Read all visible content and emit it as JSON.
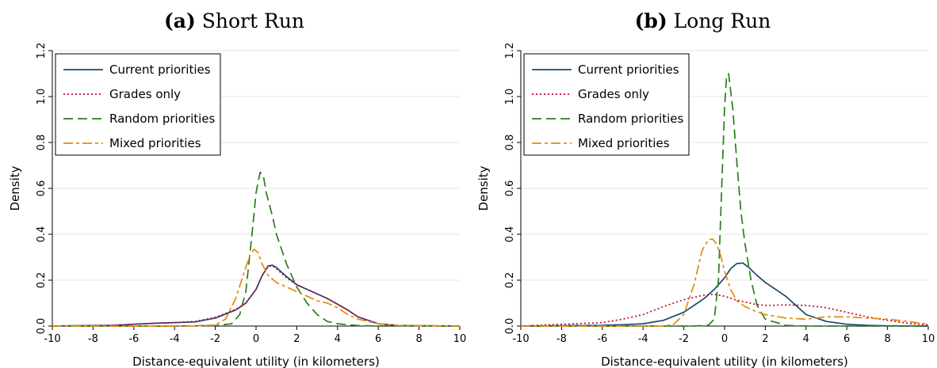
{
  "panels": [
    {
      "label": "(a)",
      "title": "Short Run"
    },
    {
      "label": "(b)",
      "title": "Long Run"
    }
  ],
  "chart_data": [
    {
      "type": "line",
      "title": "(a) Short Run",
      "xlabel": "Distance-equivalent utility (in kilometers)",
      "ylabel": "Density",
      "xlim": [
        -10,
        10
      ],
      "ylim": [
        0,
        1.2
      ],
      "xticks": [
        "-10",
        "-8",
        "-6",
        "-4",
        "-2",
        "0",
        "2",
        "4",
        "6",
        "8",
        "10"
      ],
      "yticks": [
        "0.0",
        "0.2",
        "0.4",
        "0.6",
        "0.8",
        "1.0",
        "1.2"
      ],
      "grid": "horizontal",
      "legend_position": "top-left",
      "series": [
        {
          "name": "Current priorities",
          "color": "#1a476f",
          "style": "solid",
          "x": [
            -10,
            -7,
            -6,
            -5,
            -4,
            -3,
            -2,
            -1,
            -0.5,
            0,
            0.3,
            0.6,
            0.8,
            1,
            1.5,
            2,
            2.5,
            3,
            3.5,
            4,
            4.5,
            5,
            6,
            7,
            10
          ],
          "y": [
            0,
            0.003,
            0.008,
            0.012,
            0.015,
            0.018,
            0.035,
            0.07,
            0.1,
            0.16,
            0.22,
            0.262,
            0.265,
            0.255,
            0.215,
            0.18,
            0.16,
            0.14,
            0.12,
            0.095,
            0.07,
            0.04,
            0.01,
            0.002,
            0
          ]
        },
        {
          "name": "Grades only",
          "color": "#c10534",
          "style": "dotted",
          "x": [
            -10,
            -7,
            -6,
            -5,
            -4,
            -3,
            -2,
            -1,
            -0.5,
            0,
            0.3,
            0.6,
            0.8,
            1,
            1.5,
            2,
            2.5,
            3,
            3.5,
            4,
            4.5,
            5,
            6,
            7,
            10
          ],
          "y": [
            0,
            0.003,
            0.008,
            0.012,
            0.015,
            0.02,
            0.038,
            0.072,
            0.1,
            0.16,
            0.22,
            0.26,
            0.262,
            0.25,
            0.21,
            0.18,
            0.16,
            0.14,
            0.12,
            0.095,
            0.07,
            0.04,
            0.01,
            0.002,
            0
          ]
        },
        {
          "name": "Random priorities",
          "color": "#2a7d1e",
          "style": "dashed",
          "x": [
            -10,
            -4,
            -2,
            -1.2,
            -0.8,
            -0.5,
            -0.2,
            0,
            0.2,
            0.35,
            0.5,
            0.8,
            1,
            1.5,
            2,
            2.5,
            3,
            3.5,
            4,
            5,
            6,
            10
          ],
          "y": [
            0,
            0,
            0.002,
            0.01,
            0.05,
            0.15,
            0.4,
            0.58,
            0.67,
            0.66,
            0.58,
            0.48,
            0.4,
            0.27,
            0.17,
            0.1,
            0.05,
            0.02,
            0.01,
            0.002,
            0,
            0
          ]
        },
        {
          "name": "Mixed priorities",
          "color": "#e8890c",
          "style": "dashdot",
          "x": [
            -10,
            -3,
            -2,
            -1.5,
            -1,
            -0.6,
            -0.3,
            -0.1,
            0.1,
            0.3,
            0.6,
            1,
            1.5,
            2,
            2.5,
            3,
            3.5,
            4,
            4.5,
            5,
            6,
            7,
            10
          ],
          "y": [
            0,
            0,
            0.005,
            0.03,
            0.12,
            0.23,
            0.31,
            0.335,
            0.32,
            0.27,
            0.22,
            0.19,
            0.17,
            0.15,
            0.13,
            0.11,
            0.1,
            0.08,
            0.05,
            0.03,
            0.01,
            0.002,
            0
          ]
        }
      ]
    },
    {
      "type": "line",
      "title": "(b) Long Run",
      "xlabel": "Distance-equivalent utility (in kilometers)",
      "ylabel": "Density",
      "xlim": [
        -10,
        10
      ],
      "ylim": [
        0,
        1.2
      ],
      "xticks": [
        "-10",
        "-8",
        "-6",
        "-4",
        "-2",
        "0",
        "2",
        "4",
        "6",
        "8",
        "10"
      ],
      "yticks": [
        "0.0",
        "0.2",
        "0.4",
        "0.6",
        "0.8",
        "1.0",
        "1.2"
      ],
      "grid": "horizontal",
      "legend_position": "top-left",
      "series": [
        {
          "name": "Current priorities",
          "color": "#1a476f",
          "style": "solid",
          "x": [
            -10,
            -6,
            -5,
            -4,
            -3,
            -2,
            -1,
            -0.5,
            0,
            0.3,
            0.6,
            0.9,
            1.2,
            1.6,
            2,
            2.5,
            3,
            3.5,
            4,
            5,
            6,
            7,
            8,
            10
          ],
          "y": [
            0,
            0.003,
            0.006,
            0.01,
            0.025,
            0.06,
            0.12,
            0.16,
            0.21,
            0.25,
            0.272,
            0.275,
            0.255,
            0.22,
            0.19,
            0.16,
            0.13,
            0.09,
            0.05,
            0.02,
            0.008,
            0.003,
            0.001,
            0
          ]
        },
        {
          "name": "Grades only",
          "color": "#c10534",
          "style": "dotted",
          "x": [
            -10,
            -6,
            -5,
            -4,
            -3,
            -2,
            -1,
            -0.5,
            0,
            0.5,
            1,
            1.5,
            2,
            3,
            4,
            5,
            6,
            7,
            8,
            9,
            10
          ],
          "y": [
            0,
            0.015,
            0.03,
            0.05,
            0.085,
            0.115,
            0.135,
            0.138,
            0.13,
            0.115,
            0.105,
            0.095,
            0.09,
            0.092,
            0.09,
            0.08,
            0.06,
            0.04,
            0.025,
            0.012,
            0.005
          ]
        },
        {
          "name": "Random priorities",
          "color": "#2a7d1e",
          "style": "dashed",
          "x": [
            -10,
            -1.5,
            -0.8,
            -0.5,
            -0.3,
            -0.1,
            0,
            0.1,
            0.2,
            0.4,
            0.6,
            0.8,
            1,
            1.3,
            1.6,
            2,
            3,
            4,
            10
          ],
          "y": [
            0,
            0,
            0.003,
            0.03,
            0.2,
            0.7,
            0.95,
            1.09,
            1.1,
            0.95,
            0.72,
            0.5,
            0.36,
            0.2,
            0.09,
            0.03,
            0.003,
            0,
            0
          ]
        },
        {
          "name": "Mixed priorities",
          "color": "#e8890c",
          "style": "dashdot",
          "x": [
            -10,
            -3,
            -2.5,
            -2,
            -1.5,
            -1.1,
            -0.8,
            -0.6,
            -0.4,
            -0.2,
            0,
            0.3,
            0.6,
            1,
            1.5,
            2,
            3,
            4,
            5,
            6,
            7,
            8,
            9,
            10
          ],
          "y": [
            0,
            0,
            0.008,
            0.05,
            0.18,
            0.33,
            0.375,
            0.38,
            0.36,
            0.31,
            0.24,
            0.16,
            0.11,
            0.085,
            0.065,
            0.05,
            0.035,
            0.03,
            0.04,
            0.04,
            0.035,
            0.03,
            0.02,
            0.008
          ]
        }
      ]
    }
  ]
}
